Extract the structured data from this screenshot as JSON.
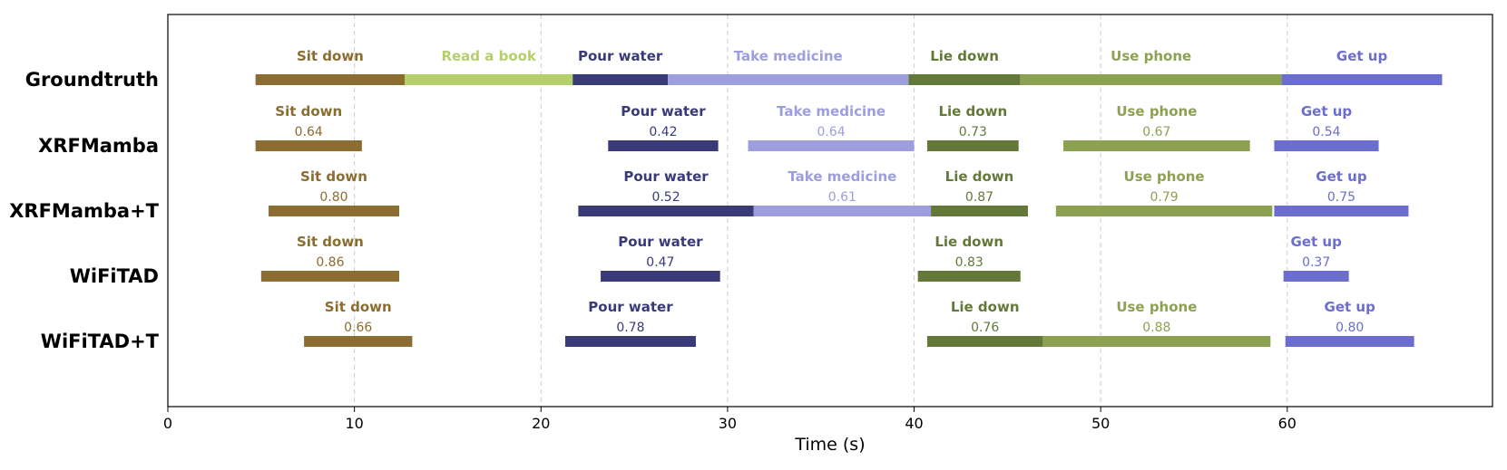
{
  "chart_data": {
    "type": "timeline",
    "xlabel": "Time (s)",
    "xlim": [
      0,
      71
    ],
    "xticks": [
      0,
      10,
      20,
      30,
      40,
      50,
      60
    ],
    "grid_x_lines": [
      10,
      20,
      30,
      40,
      50,
      60
    ],
    "colors": {
      "Sit down": "#8c6d31",
      "Read a book": "#b5cf6b",
      "Pour water": "#393b79",
      "Take medicine": "#9c9ede",
      "Lie down": "#637939",
      "Use phone": "#8ca252",
      "Get up": "#6b6ecf"
    },
    "rows": [
      {
        "name": "Groundtruth",
        "segments": [
          {
            "label": "Sit down",
            "start": 4.7,
            "end": 12.7
          },
          {
            "label": "Read a book",
            "start": 12.7,
            "end": 21.7
          },
          {
            "label": "Pour water",
            "start": 21.7,
            "end": 26.8
          },
          {
            "label": "Take medicine",
            "start": 26.8,
            "end": 39.7
          },
          {
            "label": "Lie down",
            "start": 39.7,
            "end": 45.7
          },
          {
            "label": "Use phone",
            "start": 45.7,
            "end": 59.7
          },
          {
            "label": "Get up",
            "start": 59.7,
            "end": 68.3
          }
        ]
      },
      {
        "name": "XRFMamba",
        "segments": [
          {
            "label": "Sit down",
            "start": 4.7,
            "end": 10.4,
            "score": "0.64"
          },
          {
            "label": "Pour water",
            "start": 23.6,
            "end": 29.5,
            "score": "0.42"
          },
          {
            "label": "Take medicine",
            "start": 31.1,
            "end": 40.0,
            "score": "0.64"
          },
          {
            "label": "Lie down",
            "start": 40.7,
            "end": 45.6,
            "score": "0.73"
          },
          {
            "label": "Use phone",
            "start": 48.0,
            "end": 58.0,
            "score": "0.67"
          },
          {
            "label": "Get up",
            "start": 59.3,
            "end": 64.9,
            "score": "0.54"
          }
        ]
      },
      {
        "name": "XRFMamba+T",
        "segments": [
          {
            "label": "Sit down",
            "start": 5.4,
            "end": 12.4,
            "score": "0.80"
          },
          {
            "label": "Pour water",
            "start": 22.0,
            "end": 31.4,
            "score": "0.52"
          },
          {
            "label": "Take medicine",
            "start": 31.4,
            "end": 40.9,
            "score": "0.61"
          },
          {
            "label": "Lie down",
            "start": 40.9,
            "end": 46.1,
            "score": "0.87"
          },
          {
            "label": "Use phone",
            "start": 47.6,
            "end": 59.2,
            "score": "0.79"
          },
          {
            "label": "Get up",
            "start": 59.3,
            "end": 66.5,
            "score": "0.75"
          }
        ]
      },
      {
        "name": "WiFiTAD",
        "segments": [
          {
            "label": "Sit down",
            "start": 5.0,
            "end": 12.4,
            "score": "0.86"
          },
          {
            "label": "Pour water",
            "start": 23.2,
            "end": 29.6,
            "score": "0.47"
          },
          {
            "label": "Lie down",
            "start": 40.2,
            "end": 45.7,
            "score": "0.83"
          },
          {
            "label": "Get up",
            "start": 59.8,
            "end": 63.3,
            "score": "0.37"
          }
        ]
      },
      {
        "name": "WiFiTAD+T",
        "segments": [
          {
            "label": "Sit down",
            "start": 7.3,
            "end": 13.1,
            "score": "0.66"
          },
          {
            "label": "Pour water",
            "start": 21.3,
            "end": 28.3,
            "score": "0.78"
          },
          {
            "label": "Lie down",
            "start": 40.7,
            "end": 46.9,
            "score": "0.76"
          },
          {
            "label": "Use phone",
            "start": 46.9,
            "end": 59.1,
            "score": "0.88"
          },
          {
            "label": "Get up",
            "start": 59.9,
            "end": 66.8,
            "score": "0.80"
          }
        ]
      }
    ]
  }
}
